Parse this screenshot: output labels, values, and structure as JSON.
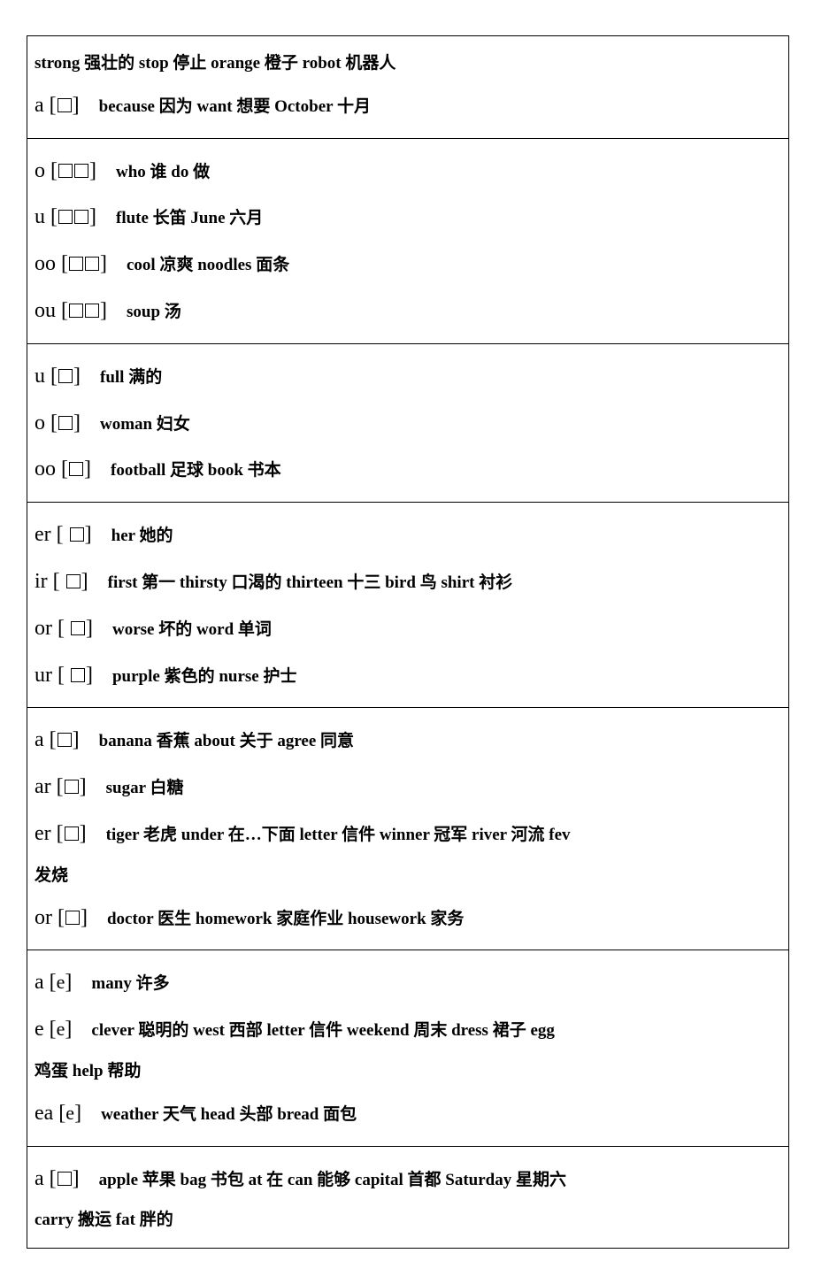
{
  "font_color": "#000000",
  "bg_color": "#ffffff",
  "border_color": "#000000",
  "phon_fontsize": 24,
  "words_fontsize": 19,
  "cells": [
    {
      "lines": [
        {
          "phon": null,
          "boxes": 0,
          "words": "strong 强壮的  stop 停止  orange 橙子  robot 机器人"
        },
        {
          "phon": "a",
          "boxes": 1,
          "words": "because 因为  want 想要  October 十月"
        }
      ]
    },
    {
      "lines": [
        {
          "phon": "o",
          "boxes": 2,
          "words": "who 谁  do 做"
        },
        {
          "phon": "u",
          "boxes": 2,
          "words": "flute 长笛  June 六月"
        },
        {
          "phon": "oo",
          "boxes": 2,
          "words": "cool 凉爽  noodles 面条"
        },
        {
          "phon": "ou",
          "boxes": 2,
          "words": "soup 汤"
        }
      ]
    },
    {
      "lines": [
        {
          "phon": "u",
          "boxes": 1,
          "words": "full 满的"
        },
        {
          "phon": "o",
          "boxes": 1,
          "words": "woman 妇女"
        },
        {
          "phon": "oo",
          "boxes": 1,
          "words": "football 足球  book 书本"
        }
      ]
    },
    {
      "lines": [
        {
          "phon": "er",
          "boxes": 1,
          "spaced": true,
          "words": "her 她的"
        },
        {
          "phon": "ir",
          "boxes": 1,
          "spaced": true,
          "words": "first 第一  thirsty 口渴的  thirteen 十三  bird 鸟  shirt 衬衫"
        },
        {
          "phon": "or",
          "boxes": 1,
          "spaced": true,
          "words": "worse 坏的  word 单词"
        },
        {
          "phon": "ur",
          "boxes": 1,
          "spaced": true,
          "words": "purple 紫色的  nurse 护士"
        }
      ]
    },
    {
      "lines": [
        {
          "phon": "a",
          "boxes": 1,
          "words": "banana 香蕉  about 关于  agree 同意"
        },
        {
          "phon": "ar",
          "boxes": 1,
          "words": "sugar 白糖"
        },
        {
          "phon": "er",
          "boxes": 1,
          "words": "tiger 老虎  under 在…下面  letter 信件  winner 冠军  river 河流  fev"
        },
        {
          "phon": null,
          "boxes": 0,
          "words": "发烧"
        },
        {
          "phon": "or",
          "boxes": 1,
          "words": "doctor 医生  homework 家庭作业  housework 家务"
        }
      ]
    },
    {
      "lines": [
        {
          "phon": "a",
          "ipa": "e",
          "words": "many 许多"
        },
        {
          "phon": "e",
          "ipa": "e",
          "words": "clever 聪明的  west 西部  letter 信件  weekend 周末  dress 裙子  egg"
        },
        {
          "phon": null,
          "boxes": 0,
          "words": "鸡蛋  help 帮助"
        },
        {
          "phon": "ea",
          "ipa": "e",
          "words": "weather 天气  head 头部  bread 面包"
        }
      ]
    },
    {
      "lines": [
        {
          "phon": "a",
          "boxes": 1,
          "words": "apple 苹果  bag 书包  at 在  can 能够  capital 首都  Saturday 星期六"
        },
        {
          "phon": null,
          "boxes": 0,
          "words": "carry 搬运  fat 胖的"
        }
      ]
    }
  ]
}
